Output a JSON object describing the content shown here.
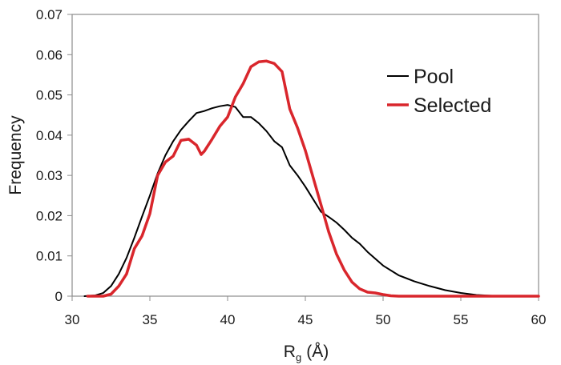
{
  "chart_data": {
    "type": "line",
    "xlabel": "R",
    "xlabel_subscript": "g",
    "xlabel_unit": "(Å)",
    "ylabel": "Frequency",
    "xlim": [
      30,
      60
    ],
    "ylim": [
      0,
      0.07
    ],
    "x_ticks": [
      30,
      35,
      40,
      45,
      50,
      55,
      60
    ],
    "y_ticks": [
      0,
      0.01,
      0.02,
      0.03,
      0.04,
      0.05,
      0.06,
      0.07
    ],
    "x_tick_labels": [
      "30",
      "35",
      "40",
      "45",
      "50",
      "55",
      "60"
    ],
    "y_tick_labels": [
      "0",
      "0.01",
      "0.02",
      "0.03",
      "0.04",
      "0.05",
      "0.06",
      "0.07"
    ],
    "grid": false,
    "legend_position": "top-right",
    "series": [
      {
        "name": "Pool",
        "color": "#000000",
        "x": [
          30.8,
          31.5,
          32.0,
          32.5,
          33.0,
          33.5,
          34.0,
          34.5,
          35.0,
          35.5,
          36.0,
          36.5,
          37.0,
          37.5,
          38.0,
          38.5,
          39.0,
          39.5,
          40.0,
          40.5,
          41.0,
          41.5,
          42.0,
          42.5,
          43.0,
          43.5,
          44.0,
          44.5,
          45.0,
          45.5,
          46.0,
          46.5,
          47.0,
          47.5,
          48.0,
          48.5,
          49.0,
          49.5,
          50.0,
          51.0,
          52.0,
          53.0,
          54.0,
          55.0,
          56.0,
          57.0,
          58.0,
          59.0,
          60.0
        ],
        "values": [
          0.0,
          0.0002,
          0.0008,
          0.0025,
          0.0055,
          0.0095,
          0.0145,
          0.0198,
          0.025,
          0.0305,
          0.035,
          0.0385,
          0.0413,
          0.0435,
          0.0455,
          0.046,
          0.0467,
          0.0472,
          0.0475,
          0.047,
          0.0445,
          0.0445,
          0.043,
          0.041,
          0.0385,
          0.037,
          0.0325,
          0.03,
          0.0272,
          0.0241,
          0.021,
          0.0197,
          0.0183,
          0.0165,
          0.0145,
          0.013,
          0.011,
          0.0093,
          0.0076,
          0.0052,
          0.0037,
          0.0025,
          0.0015,
          0.0008,
          0.0003,
          0.0001,
          0.0,
          0.0,
          0.0
        ]
      },
      {
        "name": "Selected",
        "color": "#d9262c",
        "x": [
          31.0,
          31.5,
          32.0,
          32.5,
          33.0,
          33.5,
          34.0,
          34.5,
          35.0,
          35.5,
          36.0,
          36.5,
          37.0,
          37.5,
          38.0,
          38.3,
          38.5,
          39.0,
          39.5,
          40.0,
          40.5,
          41.0,
          41.5,
          42.0,
          42.5,
          43.0,
          43.5,
          44.0,
          44.5,
          45.0,
          45.5,
          46.0,
          46.5,
          47.0,
          47.5,
          48.0,
          48.5,
          49.0,
          49.5,
          50.0,
          50.5,
          51.0,
          51.5,
          52.0,
          55.0,
          60.0
        ],
        "values": [
          0.0,
          0.0,
          0.0,
          0.0005,
          0.0025,
          0.0055,
          0.0118,
          0.015,
          0.0205,
          0.03,
          0.0333,
          0.0348,
          0.0387,
          0.039,
          0.0375,
          0.0352,
          0.036,
          0.039,
          0.0422,
          0.0445,
          0.0495,
          0.0528,
          0.057,
          0.0582,
          0.0584,
          0.0578,
          0.0558,
          0.0465,
          0.0418,
          0.0362,
          0.0295,
          0.0228,
          0.016,
          0.0105,
          0.0065,
          0.0035,
          0.0018,
          0.001,
          0.0008,
          0.0004,
          0.0001,
          0.0,
          0.0,
          0.0,
          0.0,
          0.0
        ]
      }
    ]
  }
}
